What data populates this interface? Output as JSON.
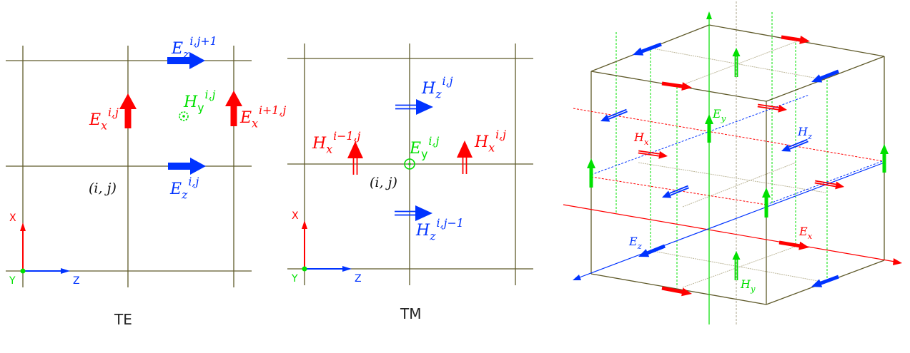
{
  "colors": {
    "x": "#ff0000",
    "y": "#00e000",
    "z": "#0033ff",
    "grid": "#5f5a2a",
    "hidden": "#bdb79a"
  },
  "te": {
    "title": "TE",
    "cell": "(i, j)",
    "axes": {
      "x": "X",
      "y": "Y",
      "z": "Z"
    },
    "ez_top": {
      "base": "E",
      "sub": "z",
      "sup": "i,j+1"
    },
    "ex_left": {
      "base": "E",
      "sub": "x",
      "sup": "i,j"
    },
    "ex_right": {
      "base": "E",
      "sub": "x",
      "sup": "i+1,j"
    },
    "hy": {
      "base": "H",
      "sub": "y",
      "sup": "i,j"
    },
    "ez_bottom": {
      "base": "E",
      "sub": "z",
      "sup": "i,j"
    }
  },
  "tm": {
    "title": "TM",
    "cell": "(i, j)",
    "axes": {
      "x": "X",
      "y": "Y",
      "z": "Z"
    },
    "hz_top": {
      "base": "H",
      "sub": "z",
      "sup": "i,j"
    },
    "hx_left": {
      "base": "H",
      "sub": "x",
      "sup": "i−1,j"
    },
    "hx_right": {
      "base": "H",
      "sub": "x",
      "sup": "i,j"
    },
    "ey": {
      "base": "E",
      "sub": "y",
      "sup": "i,j"
    },
    "hz_bottom": {
      "base": "H",
      "sub": "z",
      "sup": "i,j−1"
    }
  },
  "cube": {
    "ey": {
      "base": "E",
      "sub": "y"
    },
    "hx": {
      "base": "H",
      "sub": "x"
    },
    "hz": {
      "base": "H",
      "sub": "z"
    },
    "ez": {
      "base": "E",
      "sub": "z"
    },
    "ex": {
      "base": "E",
      "sub": "x"
    },
    "hy": {
      "base": "H",
      "sub": "y"
    }
  }
}
